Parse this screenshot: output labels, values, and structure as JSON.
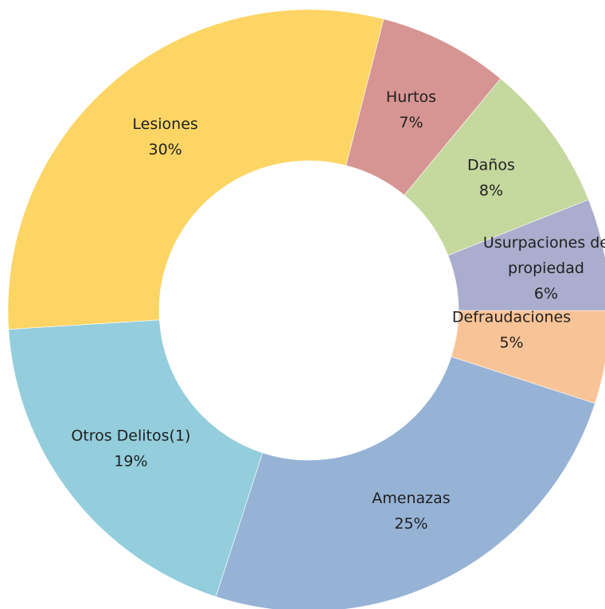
{
  "chart_data": {
    "type": "pie",
    "donut": true,
    "title": "",
    "slices": [
      {
        "label": [
          "Defraudaciones"
        ],
        "percent_label": "5%",
        "value": 5,
        "color": "#F8C497"
      },
      {
        "label": [
          "Amenazas"
        ],
        "percent_label": "25%",
        "value": 25,
        "color": "#96B3D6"
      },
      {
        "label": [
          "Otros Delitos(1)"
        ],
        "percent_label": "19%",
        "value": 19,
        "color": "#94CEDD"
      },
      {
        "label": [
          "Lesiones"
        ],
        "percent_label": "30%",
        "value": 30,
        "color": "#FCD565"
      },
      {
        "label": [
          "Hurtos"
        ],
        "percent_label": "7%",
        "value": 7,
        "color": "#D69593"
      },
      {
        "label": [
          "Daños"
        ],
        "percent_label": "8%",
        "value": 8,
        "color": "#C5D89E"
      },
      {
        "label": [
          "Usurpaciones de",
          "propiedad"
        ],
        "percent_label": "6%",
        "value": 6,
        "color": "#AAADCD"
      }
    ]
  }
}
